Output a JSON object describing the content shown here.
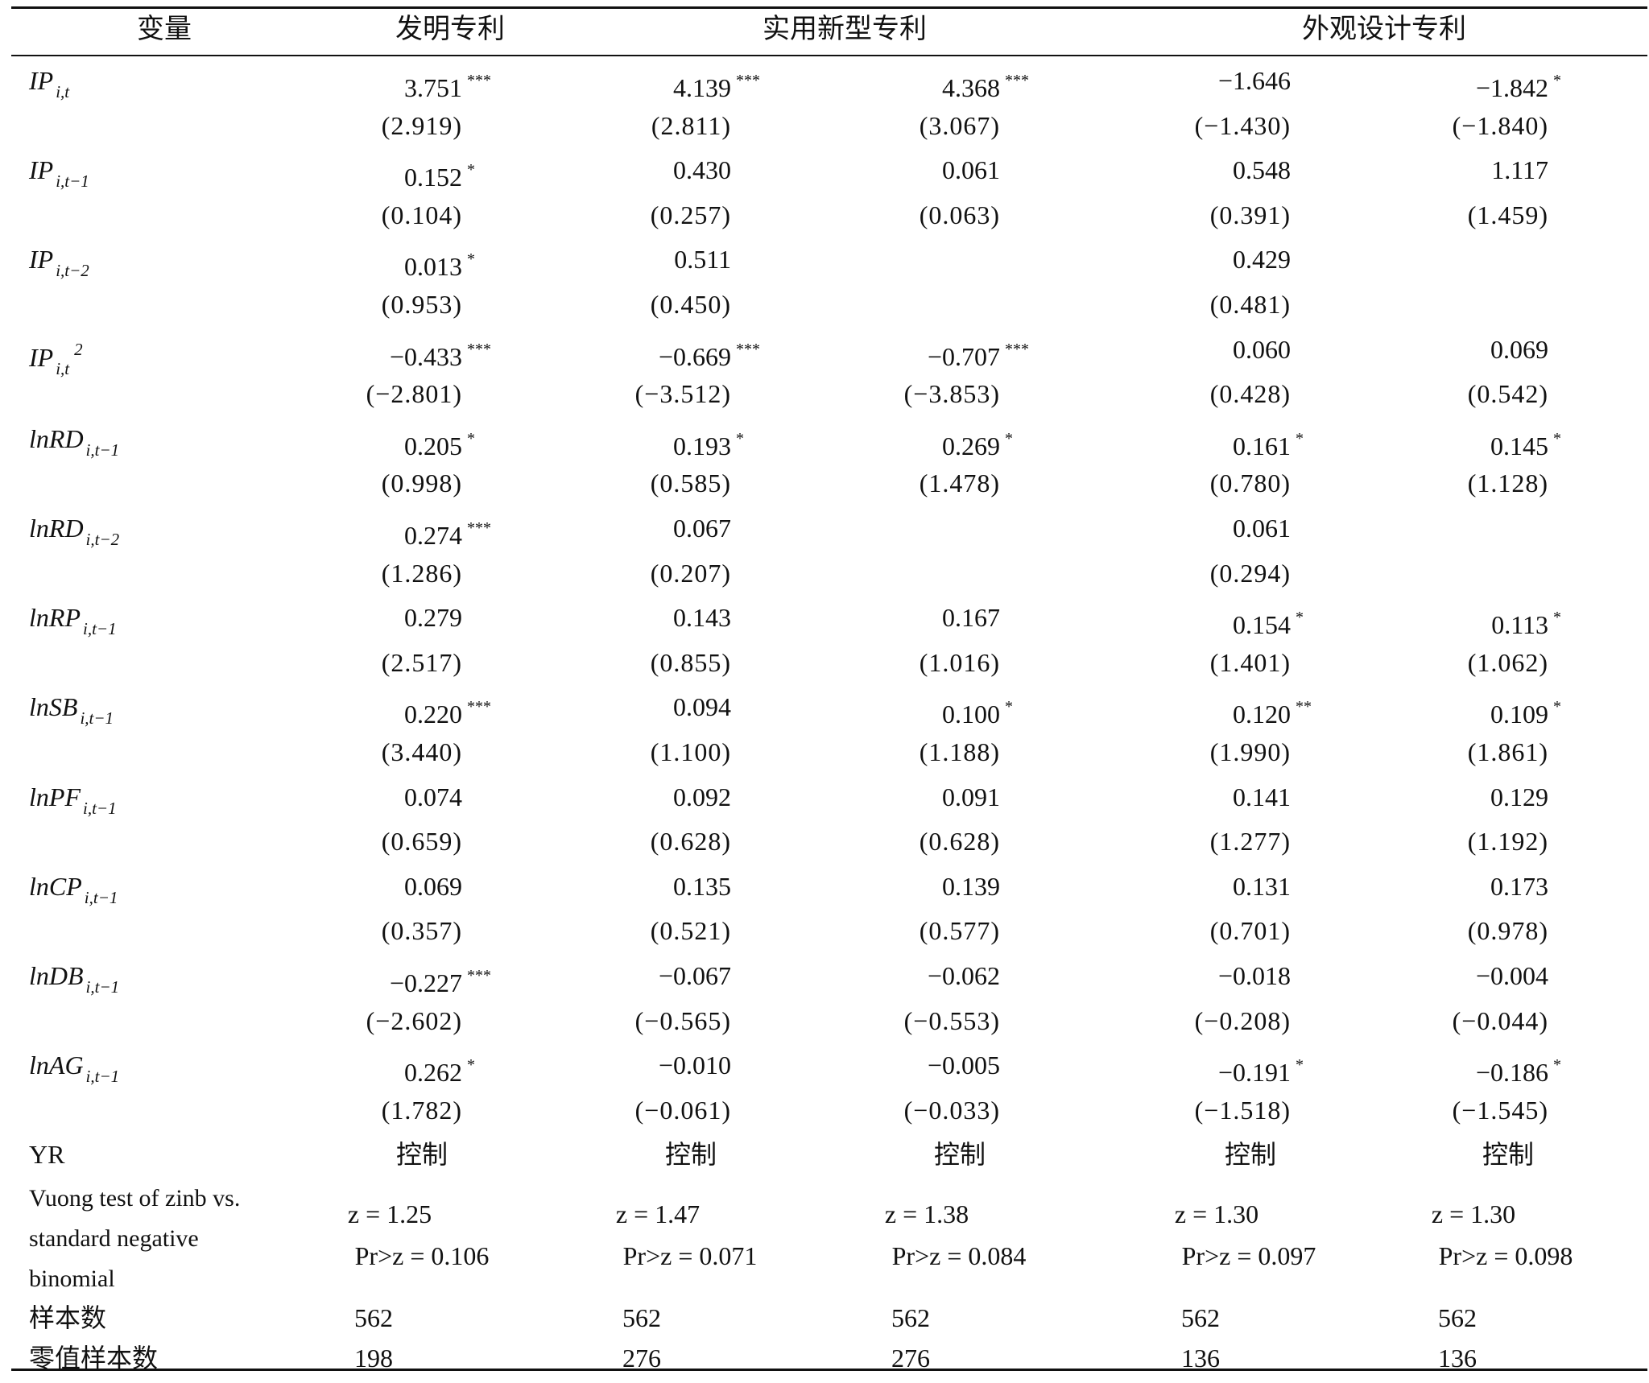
{
  "header": {
    "var_label": "变量",
    "groups": [
      "发明专利",
      "实用新型专利",
      "外观设计专利"
    ]
  },
  "rows": [
    {
      "var": "IP",
      "sub": "i,t",
      "sup": "",
      "coef": [
        [
          "3.751",
          "***"
        ],
        [
          "4.139",
          "***"
        ],
        [
          "4.368",
          "***"
        ],
        [
          "−1.646",
          ""
        ],
        [
          "−1.842",
          "*"
        ]
      ],
      "se": [
        "(2.919)",
        "(2.811)",
        "(3.067)",
        "(−1.430)",
        "(−1.840)"
      ]
    },
    {
      "var": "IP",
      "sub": "i,t−1",
      "sup": "",
      "coef": [
        [
          "0.152",
          "*"
        ],
        [
          "0.430",
          ""
        ],
        [
          "0.061",
          ""
        ],
        [
          "0.548",
          ""
        ],
        [
          "1.117",
          ""
        ]
      ],
      "se": [
        "(0.104)",
        "(0.257)",
        "(0.063)",
        "(0.391)",
        "(1.459)"
      ]
    },
    {
      "var": "IP",
      "sub": "i,t−2",
      "sup": "",
      "coef": [
        [
          "0.013",
          "*"
        ],
        [
          "0.511",
          ""
        ],
        [
          "",
          ""
        ],
        [
          "0.429",
          ""
        ],
        [
          "",
          ""
        ]
      ],
      "se": [
        "(0.953)",
        "(0.450)",
        "",
        "(0.481)",
        ""
      ]
    },
    {
      "var": "IP",
      "sub": "i,t",
      "sup": "2",
      "coef": [
        [
          "−0.433",
          "***"
        ],
        [
          "−0.669",
          "***"
        ],
        [
          "−0.707",
          "***"
        ],
        [
          "0.060",
          ""
        ],
        [
          "0.069",
          ""
        ]
      ],
      "se": [
        "(−2.801)",
        "(−3.512)",
        "(−3.853)",
        "(0.428)",
        "(0.542)"
      ]
    },
    {
      "var": "lnRD",
      "sub": "i,t−1",
      "sup": "",
      "coef": [
        [
          "0.205",
          "*"
        ],
        [
          "0.193",
          "*"
        ],
        [
          "0.269",
          "*"
        ],
        [
          "0.161",
          "*"
        ],
        [
          "0.145",
          "*"
        ]
      ],
      "se": [
        "(0.998)",
        "(0.585)",
        "(1.478)",
        "(0.780)",
        "(1.128)"
      ]
    },
    {
      "var": "lnRD",
      "sub": "i,t−2",
      "sup": "",
      "coef": [
        [
          "0.274",
          "***"
        ],
        [
          "0.067",
          ""
        ],
        [
          "",
          ""
        ],
        [
          "0.061",
          ""
        ],
        [
          "",
          ""
        ]
      ],
      "se": [
        "(1.286)",
        "(0.207)",
        "",
        "(0.294)",
        ""
      ]
    },
    {
      "var": "lnRP",
      "sub": "i,t−1",
      "sup": "",
      "coef": [
        [
          "0.279",
          ""
        ],
        [
          "0.143",
          ""
        ],
        [
          "0.167",
          ""
        ],
        [
          "0.154",
          "*"
        ],
        [
          "0.113",
          "*"
        ]
      ],
      "se": [
        "(2.517)",
        "(0.855)",
        "(1.016)",
        "(1.401)",
        "(1.062)"
      ]
    },
    {
      "var": "lnSB",
      "sub": "i,t−1",
      "sup": "",
      "coef": [
        [
          "0.220",
          "***"
        ],
        [
          "0.094",
          ""
        ],
        [
          "0.100",
          "*"
        ],
        [
          "0.120",
          "**"
        ],
        [
          "0.109",
          "*"
        ]
      ],
      "se": [
        "(3.440)",
        "(1.100)",
        "(1.188)",
        "(1.990)",
        "(1.861)"
      ]
    },
    {
      "var": "lnPF",
      "sub": "i,t−1",
      "sup": "",
      "coef": [
        [
          "0.074",
          ""
        ],
        [
          "0.092",
          ""
        ],
        [
          "0.091",
          ""
        ],
        [
          "0.141",
          ""
        ],
        [
          "0.129",
          ""
        ]
      ],
      "se": [
        "(0.659)",
        "(0.628)",
        "(0.628)",
        "(1.277)",
        "(1.192)"
      ]
    },
    {
      "var": "lnCP",
      "sub": "i,t−1",
      "sup": "",
      "coef": [
        [
          "0.069",
          ""
        ],
        [
          "0.135",
          ""
        ],
        [
          "0.139",
          ""
        ],
        [
          "0.131",
          ""
        ],
        [
          "0.173",
          ""
        ]
      ],
      "se": [
        "(0.357)",
        "(0.521)",
        "(0.577)",
        "(0.701)",
        "(0.978)"
      ]
    },
    {
      "var": "lnDB",
      "sub": "i,t−1",
      "sup": "",
      "coef": [
        [
          "−0.227",
          "***"
        ],
        [
          "−0.067",
          ""
        ],
        [
          "−0.062",
          ""
        ],
        [
          "−0.018",
          ""
        ],
        [
          "−0.004",
          ""
        ]
      ],
      "se": [
        "(−2.602)",
        "(−0.565)",
        "(−0.553)",
        "(−0.208)",
        "(−0.044)"
      ]
    },
    {
      "var": "lnAG",
      "sub": "i,t−1",
      "sup": "",
      "coef": [
        [
          "0.262",
          "*"
        ],
        [
          "−0.010",
          ""
        ],
        [
          "−0.005",
          ""
        ],
        [
          "−0.191",
          "*"
        ],
        [
          "−0.186",
          "*"
        ]
      ],
      "se": [
        "(1.782)",
        "(−0.061)",
        "(−0.033)",
        "(−1.518)",
        "(−1.545)"
      ]
    }
  ],
  "yr": {
    "label": "YR",
    "values": [
      "控制",
      "控制",
      "控制",
      "控制",
      "控制"
    ]
  },
  "vuong": {
    "label_lines": [
      "Vuong test of zinb vs.",
      "standard negative",
      "binomial"
    ],
    "z": [
      "z = 1.25",
      "z = 1.47",
      "z = 1.38",
      "z = 1.30",
      "z = 1.30"
    ],
    "p": [
      "Pr>z = 0.106",
      "Pr>z = 0.071",
      "Pr>z = 0.084",
      "Pr>z = 0.097",
      "Pr>z = 0.098"
    ]
  },
  "samples": {
    "label": "样本数",
    "values": [
      "562",
      "562",
      "562",
      "562",
      "562"
    ]
  },
  "zero_samples": {
    "label": "零值样本数",
    "values": [
      "198",
      "276",
      "276",
      "136",
      "136"
    ]
  }
}
